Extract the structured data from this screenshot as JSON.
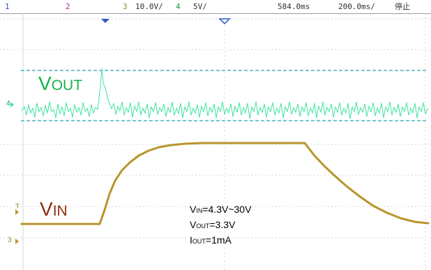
{
  "status_bar": {
    "ch1_number": "1",
    "ch2_number": "2",
    "ch3_number": "3",
    "ch3_scale": "10.0V/",
    "ch4_number": "4",
    "ch4_scale": "5V/",
    "time_position": "584.0ms",
    "time_scale": "200.0ms/",
    "run_state": "停止"
  },
  "traces": {
    "vout_label_main": "V",
    "vout_label_sub": "OUT",
    "vin_label_main": "V",
    "vin_label_sub": "IN",
    "ch4_marker": "4",
    "ch3_marker": "3",
    "trigger_marker": "T"
  },
  "notes": {
    "line1_main": "V",
    "line1_sub": "IN",
    "line1_value": "=4.3V~30V",
    "line2_main": "V",
    "line2_sub": "OUT",
    "line2_value": "=3.3V",
    "line3_main": "I",
    "line3_sub": "OUT",
    "line3_value": "=1mA"
  },
  "colors": {
    "vout_trace": "#3fe3a0",
    "vin_trace": "#b8952a",
    "vout_label": "#19b14a",
    "vin_label": "#8b2e0e",
    "cursor_line": "#2fa2a8",
    "grid": "#d6d6d6",
    "status_blue": "#2d56c8",
    "status_yellow": "#9a8a2a",
    "status_green": "#1c9a4a"
  }
}
